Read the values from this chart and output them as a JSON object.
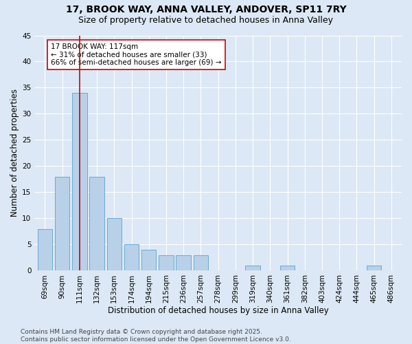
{
  "title1": "17, BROOK WAY, ANNA VALLEY, ANDOVER, SP11 7RY",
  "title2": "Size of property relative to detached houses in Anna Valley",
  "xlabel": "Distribution of detached houses by size in Anna Valley",
  "ylabel": "Number of detached properties",
  "categories": [
    "69sqm",
    "90sqm",
    "111sqm",
    "132sqm",
    "153sqm",
    "174sqm",
    "194sqm",
    "215sqm",
    "236sqm",
    "257sqm",
    "278sqm",
    "299sqm",
    "319sqm",
    "340sqm",
    "361sqm",
    "382sqm",
    "403sqm",
    "424sqm",
    "444sqm",
    "465sqm",
    "486sqm"
  ],
  "values": [
    8,
    18,
    34,
    18,
    10,
    5,
    4,
    3,
    3,
    3,
    0,
    0,
    1,
    0,
    1,
    0,
    0,
    0,
    0,
    1,
    0
  ],
  "bar_color": "#b8d0e8",
  "bar_edge_color": "#6aaad4",
  "vline_x_index": 2,
  "vline_color": "#cc0000",
  "annotation_text": "17 BROOK WAY: 117sqm\n← 31% of detached houses are smaller (33)\n66% of semi-detached houses are larger (69) →",
  "annotation_box_color": "#ffffff",
  "annotation_box_edge": "#cc0000",
  "ylim": [
    0,
    45
  ],
  "yticks": [
    0,
    5,
    10,
    15,
    20,
    25,
    30,
    35,
    40,
    45
  ],
  "bg_color": "#dce8f5",
  "grid_color": "#ffffff",
  "footnote": "Contains HM Land Registry data © Crown copyright and database right 2025.\nContains public sector information licensed under the Open Government Licence v3.0.",
  "title1_fontsize": 10,
  "title2_fontsize": 9,
  "xlabel_fontsize": 8.5,
  "ylabel_fontsize": 8.5,
  "tick_fontsize": 7.5,
  "annotation_fontsize": 7.5,
  "footnote_fontsize": 6.5
}
